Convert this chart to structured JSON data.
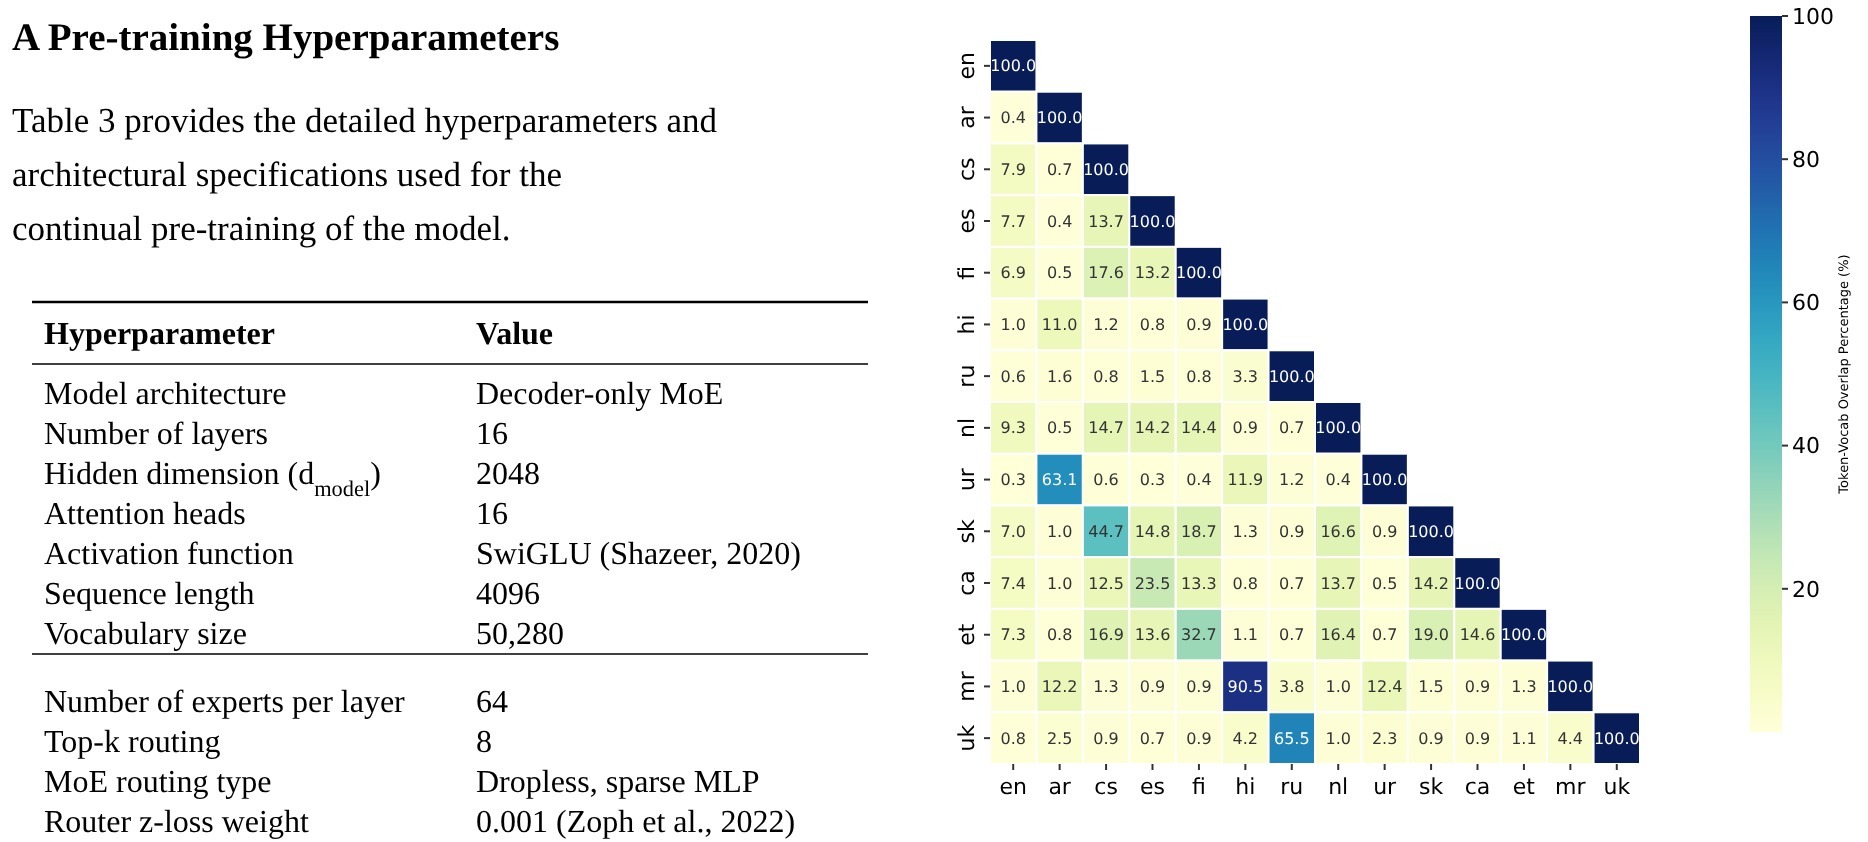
{
  "chart_data": [
    {
      "type": "other",
      "title": "A   Pre-training Hyperparameters",
      "subtitle": "Table 3 provides the detailed hyperparameters and architectural specifications used for the continual pre-training of the model.",
      "annotations": [
        "Hyperparameter",
        "Value",
        "Model architecture",
        "Decoder-only MoE",
        "Number of layers",
        "16",
        "Hidden dimension (d$_{model}$)",
        "2048",
        "Attention heads",
        "16",
        "Activation function",
        "SwiGLU (Shazeer, 2020)",
        "Sequence length",
        "4096",
        "Vocabulary size",
        "50,280",
        "Number of experts per layer",
        "64",
        "Top-k routing",
        "8",
        "MoE routing type",
        "Dropless, sparse MLP",
        "Router z-loss weight",
        "0.001 (Zoph et al., 2022)"
      ]
    },
    {
      "type": "heatmap",
      "clabel": "Token-Vocab Overlap Percentage (%)",
      "clim": [
        0,
        100
      ],
      "cticks": [
        20,
        40,
        60,
        80,
        100
      ],
      "data_labels": true,
      "categories": [
        "en",
        "ar",
        "cs",
        "es",
        "fi",
        "hi",
        "ru",
        "nl",
        "ur",
        "sk",
        "ca",
        "et",
        "mr",
        "uk"
      ],
      "y_categories": [
        "en",
        "ar",
        "cs",
        "es",
        "fi",
        "hi",
        "ru",
        "nl",
        "ur",
        "sk",
        "ca",
        "et",
        "mr",
        "uk"
      ],
      "cells": [
        [
          100.0,
          null,
          null,
          null,
          null,
          null,
          null,
          null,
          null,
          null,
          null,
          null,
          null,
          null
        ],
        [
          0.4,
          100.0,
          null,
          null,
          null,
          null,
          null,
          null,
          null,
          null,
          null,
          null,
          null,
          null
        ],
        [
          7.9,
          0.7,
          100.0,
          null,
          null,
          null,
          null,
          null,
          null,
          null,
          null,
          null,
          null,
          null
        ],
        [
          7.7,
          0.4,
          13.7,
          100.0,
          null,
          null,
          null,
          null,
          null,
          null,
          null,
          null,
          null,
          null
        ],
        [
          6.9,
          0.5,
          17.6,
          13.2,
          100.0,
          null,
          null,
          null,
          null,
          null,
          null,
          null,
          null,
          null
        ],
        [
          1.0,
          11.0,
          1.2,
          0.8,
          0.9,
          100.0,
          null,
          null,
          null,
          null,
          null,
          null,
          null,
          null
        ],
        [
          0.6,
          1.6,
          0.8,
          1.5,
          0.8,
          3.3,
          100.0,
          null,
          null,
          null,
          null,
          null,
          null,
          null
        ],
        [
          9.3,
          0.5,
          14.7,
          14.2,
          14.4,
          0.9,
          0.7,
          100.0,
          null,
          null,
          null,
          null,
          null,
          null
        ],
        [
          0.3,
          63.1,
          0.6,
          0.3,
          0.4,
          11.9,
          1.2,
          0.4,
          100.0,
          null,
          null,
          null,
          null,
          null
        ],
        [
          7.0,
          1.0,
          44.7,
          14.8,
          18.7,
          1.3,
          0.9,
          16.6,
          0.9,
          100.0,
          null,
          null,
          null,
          null
        ],
        [
          7.4,
          1.0,
          12.5,
          23.5,
          13.3,
          0.8,
          0.7,
          13.7,
          0.5,
          14.2,
          100.0,
          null,
          null,
          null
        ],
        [
          7.3,
          0.8,
          16.9,
          13.6,
          32.7,
          1.1,
          0.7,
          16.4,
          0.7,
          19.0,
          14.6,
          100.0,
          null,
          null
        ],
        [
          1.0,
          12.2,
          1.3,
          0.9,
          0.9,
          90.5,
          3.8,
          1.0,
          12.4,
          1.5,
          0.9,
          1.3,
          100.0,
          null
        ],
        [
          0.8,
          2.5,
          0.9,
          0.7,
          0.9,
          4.2,
          65.5,
          1.0,
          2.3,
          0.9,
          0.9,
          1.1,
          4.4,
          100.0
        ]
      ],
      "cell_labels": [
        [
          "100.0",
          null,
          null,
          null,
          null,
          null,
          null,
          null,
          null,
          null,
          null,
          null,
          null,
          null
        ],
        [
          "0.4",
          "100.0",
          null,
          null,
          null,
          null,
          null,
          null,
          null,
          null,
          null,
          null,
          null,
          null
        ],
        [
          "7.9",
          "0.7",
          "100.0",
          null,
          null,
          null,
          null,
          null,
          null,
          null,
          null,
          null,
          null,
          null
        ],
        [
          "7.7",
          "0.4",
          "13.7",
          "100.0",
          null,
          null,
          null,
          null,
          null,
          null,
          null,
          null,
          null,
          null
        ],
        [
          "6.9",
          "0.5",
          "17.6",
          "13.2",
          "100.0",
          null,
          null,
          null,
          null,
          null,
          null,
          null,
          null,
          null
        ],
        [
          "1.0",
          "11.0",
          "1.2",
          "0.8",
          "0.9",
          "100.0",
          null,
          null,
          null,
          null,
          null,
          null,
          null,
          null
        ],
        [
          "0.6",
          "1.6",
          "0.8",
          "1.5",
          "0.8",
          "3.3",
          "100.0",
          null,
          null,
          null,
          null,
          null,
          null,
          null
        ],
        [
          "9.3",
          "0.5",
          "14.7",
          "14.2",
          "14.4",
          "0.9",
          "0.7",
          "100.0",
          null,
          null,
          null,
          null,
          null,
          null
        ],
        [
          "0.3",
          "63.1",
          "0.6",
          "0.3",
          "0.4",
          "11.9",
          "1.2",
          "0.4",
          "100.0",
          null,
          null,
          null,
          null,
          null
        ],
        [
          "7.0",
          "1.0",
          "44.7",
          "14.8",
          "18.7",
          "1.3",
          "0.9",
          "16.6",
          "0.9",
          "100.0",
          null,
          null,
          null,
          null
        ],
        [
          "7.4",
          "1.0",
          "12.5",
          "23.5",
          "13.3",
          "0.8",
          "0.7",
          "13.7",
          "0.5",
          "14.2",
          "100.0",
          null,
          null,
          null
        ],
        [
          "7.3",
          "0.8",
          "16.9",
          "13.6",
          "32.7",
          "1.1",
          "0.7",
          "16.4",
          "0.7",
          "19.0",
          "14.6",
          "100.0",
          null,
          null
        ],
        [
          "1.0",
          "12.2",
          "1.3",
          "0.9",
          "0.9",
          "90.5",
          "3.8",
          "1.0",
          "12.4",
          "1.5",
          "0.9",
          "1.3",
          "100.0",
          null
        ],
        [
          "0.8",
          "2.5",
          "0.9",
          "0.7",
          "0.9",
          "4.2",
          "65.5",
          "1.0",
          "2.3",
          "0.9",
          "0.9",
          "1.1",
          "4.4",
          "100.0"
        ]
      ]
    }
  ]
}
